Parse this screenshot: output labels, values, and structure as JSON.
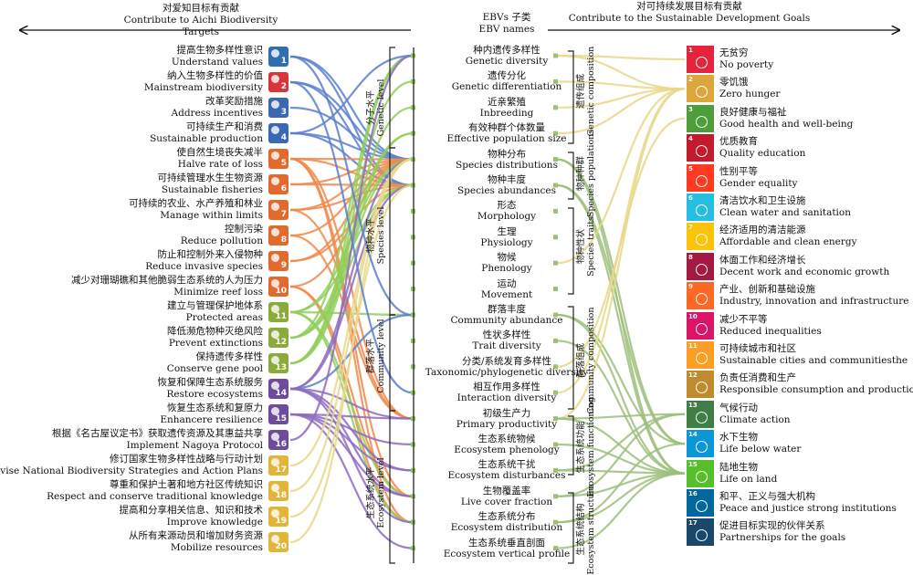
{
  "headers": {
    "left_zh": "对爱知目标有贡献",
    "left_en": "Contribute to Aichi Biodiversity Targets",
    "center_zh": "EBVs 子类",
    "center_en": "EBV names",
    "right_zh": "对可持续发展目标有贡献",
    "right_en": "Contribute to the Sustainable Development Goals"
  },
  "aichi_targets": [
    {
      "zh": "提高生物多样性意识",
      "en": "Understand values",
      "num": "1",
      "color": "#2f6fb0"
    },
    {
      "zh": "纳入生物多样性的价值",
      "en": "Mainstream biodiversity",
      "num": "2",
      "color": "#d8343c"
    },
    {
      "zh": "改革奖励措施",
      "en": "Address incentives",
      "num": "3",
      "color": "#3b68b3"
    },
    {
      "zh": "可持续生产和消费",
      "en": "Sustainable production",
      "num": "4",
      "color": "#3b68b3"
    },
    {
      "zh": "使自然生境丧失减半",
      "en": "Halve rate of loss",
      "num": "5",
      "color": "#e36a2d"
    },
    {
      "zh": "可持续管理水生生物资源",
      "en": "Sustainable fisheries",
      "num": "6",
      "color": "#e36a2d"
    },
    {
      "zh": "可持续的农业、水产养殖和林业",
      "en": "Manage within limits",
      "num": "7",
      "color": "#e36a2d"
    },
    {
      "zh": "控制污染",
      "en": "Reduce pollution",
      "num": "8",
      "color": "#e36a2d"
    },
    {
      "zh": "防止和控制外来入侵物种",
      "en": "Reduce invasive species",
      "num": "9",
      "color": "#e36a2d"
    },
    {
      "zh": "减少对珊瑚礁和其他脆弱生态系统的人为压力",
      "en": "Minimize reef loss",
      "num": "10",
      "color": "#e36a2d"
    },
    {
      "zh": "建立与管理保护地体系",
      "en": "Protected areas",
      "num": "11",
      "color": "#8aab3a"
    },
    {
      "zh": "降低濒危物种灭绝风险",
      "en": "Prevent extinctions",
      "num": "12",
      "color": "#8aab3a"
    },
    {
      "zh": "保持遗传多样性",
      "en": "Conserve gene pool",
      "num": "13",
      "color": "#8aab3a"
    },
    {
      "zh": "恢复和保障生态系统服务",
      "en": "Restore ecosystems",
      "num": "14",
      "color": "#6d4c9b"
    },
    {
      "zh": "恢复生态系统和复原力",
      "en": "Enhancere resilience",
      "num": "15",
      "color": "#6d4c9b"
    },
    {
      "zh": "根据《名古屋议定书》获取遗传资源及其惠益共享",
      "en": "Implement Nagoya Protocol",
      "num": "16",
      "color": "#6d4c9b"
    },
    {
      "zh": "修订国家生物多样性战略与行动计划",
      "en": "Revise National Biodiversity Strategies and Action Plans",
      "num": "17",
      "color": "#e3b43a"
    },
    {
      "zh": "尊重和保护土著和地方社区传统知识",
      "en": "Respect and conserve traditional knowledge",
      "num": "18",
      "color": "#e3b43a"
    },
    {
      "zh": "提高和分享相关信息、知识和技术",
      "en": "Improve knowledge",
      "num": "19",
      "color": "#e3b43a"
    },
    {
      "zh": "从所有来源动员和增加财务资源",
      "en": "Mobilize resources",
      "num": "20",
      "color": "#e3b43a"
    }
  ],
  "ebvs": [
    {
      "zh": "种内遗传多样性",
      "en": "Genetic diversity"
    },
    {
      "zh": "遗传分化",
      "en": "Genetic differentiation"
    },
    {
      "zh": "近亲繁殖",
      "en": "Inbreeding"
    },
    {
      "zh": "有效种群个体数量",
      "en": "Effective population size"
    },
    {
      "zh": "物种分布",
      "en": "Species distributions"
    },
    {
      "zh": "物种丰度",
      "en": "Species abundances"
    },
    {
      "zh": "形态",
      "en": "Morphology"
    },
    {
      "zh": "生理",
      "en": "Physiology"
    },
    {
      "zh": "物候",
      "en": "Phenology"
    },
    {
      "zh": "运动",
      "en": "Movement"
    },
    {
      "zh": "群落丰度",
      "en": "Community abundance"
    },
    {
      "zh": "性状多样性",
      "en": "Trait diversity"
    },
    {
      "zh": "分类/系统发育多样性",
      "en": "Taxonomic/phylogenetic diversity"
    },
    {
      "zh": "相互作用多样性",
      "en": "Interaction diversity"
    },
    {
      "zh": "初级生产力",
      "en": "Primary productivity"
    },
    {
      "zh": "生态系统物候",
      "en": "Ecosystem phenology"
    },
    {
      "zh": "生态系统干扰",
      "en": "Ecosystem disturbances"
    },
    {
      "zh": "生物覆盖率",
      "en": "Live cover fraction"
    },
    {
      "zh": "生态系统分布",
      "en": "Ecosystem distribution"
    },
    {
      "zh": "生态系统垂直剖面",
      "en": "Ecosystem vertical profile"
    }
  ],
  "levels": [
    {
      "zh": "分子水平",
      "en": "Genetic level"
    },
    {
      "zh": "物种水平",
      "en": "Species level"
    },
    {
      "zh": "群落水平",
      "en": "Community level"
    },
    {
      "zh": "生态系统水平",
      "en": "Ecosystem level"
    }
  ],
  "classes": [
    {
      "zh": "遗传组成",
      "en": "Genetic composition"
    },
    {
      "zh": "物种种群",
      "en": "Species populations"
    },
    {
      "zh": "物种性状",
      "en": "Species traits"
    },
    {
      "zh": "群落组成",
      "en": "Community composition"
    },
    {
      "zh": "生态系统功能",
      "en": "Ecosystem functioning"
    },
    {
      "zh": "生态系统结构",
      "en": "Ecosystem structure"
    }
  ],
  "sdgs": [
    {
      "zh": "无贫穷",
      "en": "No poverty",
      "num": "1",
      "color": "#e5243b"
    },
    {
      "zh": "零饥饿",
      "en": "Zero hunger",
      "num": "2",
      "color": "#dda63a"
    },
    {
      "zh": "良好健康与福祉",
      "en": "Good health and well-being",
      "num": "3",
      "color": "#4c9f38"
    },
    {
      "zh": "优质教育",
      "en": "Quality education",
      "num": "4",
      "color": "#c5192d"
    },
    {
      "zh": "性别平等",
      "en": "Gender equality",
      "num": "5",
      "color": "#ff3a21"
    },
    {
      "zh": "清洁饮水和卫生设施",
      "en": "Clean water and sanitation",
      "num": "6",
      "color": "#26bde2"
    },
    {
      "zh": "经济适用的清洁能源",
      "en": "Affordable and clean energy",
      "num": "7",
      "color": "#fcc30b"
    },
    {
      "zh": "体面工作和经济增长",
      "en": "Decent work and economic growth",
      "num": "8",
      "color": "#a21942"
    },
    {
      "zh": "产业、创新和基础设施",
      "en": "Industry, innovation and infrastructure",
      "num": "9",
      "color": "#fd6925"
    },
    {
      "zh": "减少不平等",
      "en": "Reduced inequalities",
      "num": "10",
      "color": "#dd1367"
    },
    {
      "zh": "可持续城市和社区",
      "en": "Sustainable cities and communitiesthe",
      "num": "11",
      "color": "#fd9d24"
    },
    {
      "zh": "负责任消费和生产",
      "en": "Responsible consumption and production",
      "num": "12",
      "color": "#bf8b2e"
    },
    {
      "zh": "气候行动",
      "en": "Climate action",
      "num": "13",
      "color": "#3f7e44"
    },
    {
      "zh": "水下生物",
      "en": "Life below water",
      "num": "14",
      "color": "#0a97d9"
    },
    {
      "zh": "陆地生物",
      "en": "Life on land",
      "num": "15",
      "color": "#56c02b"
    },
    {
      "zh": "和平、正义与强大机构",
      "en": "Peace and justice strong institutions",
      "num": "16",
      "color": "#00689d"
    },
    {
      "zh": "促进目标实现的伙伴关系",
      "en": "Partnerships for the goals",
      "num": "17",
      "color": "#19486a"
    }
  ],
  "link_colors": {
    "blue": "#5b7fcf",
    "orange": "#f08a4b",
    "green": "#8fcf5a",
    "purple": "#8e6bbf",
    "yellow": "#e8d88a",
    "olive": "#9cc07a"
  }
}
